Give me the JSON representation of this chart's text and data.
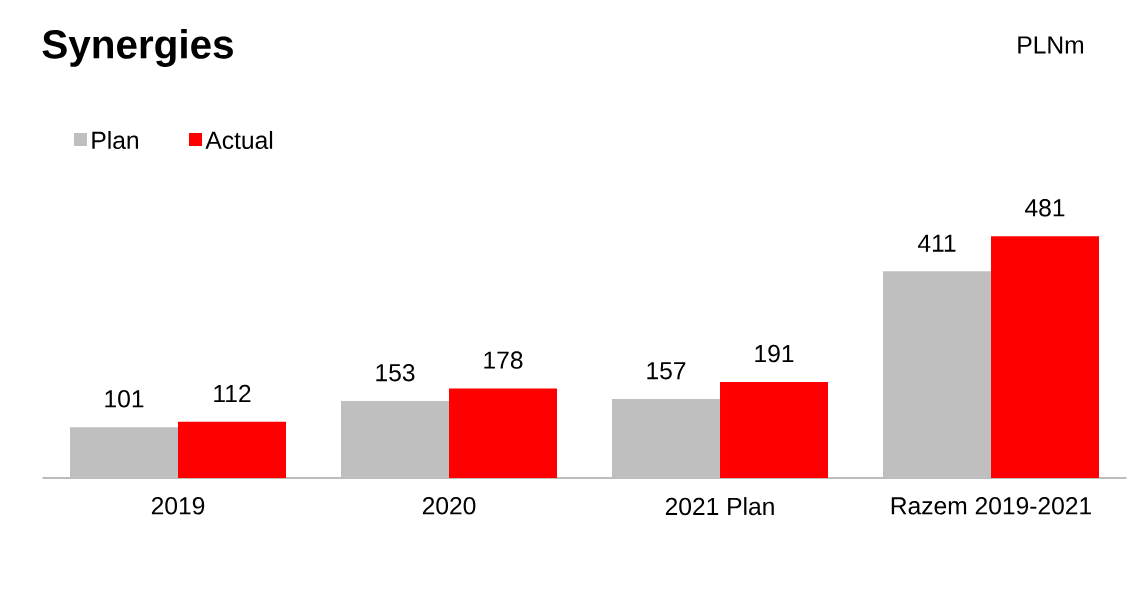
{
  "chart_data": {
    "type": "bar",
    "title": "Synergies",
    "annotations": [
      "PLNm"
    ],
    "categories": [
      "2019",
      "2020",
      "2021 Plan",
      "Razem 2019-2021"
    ],
    "series": [
      {
        "name": "Plan",
        "color": "#bfbfbf",
        "values": [
          101,
          153,
          157,
          411
        ]
      },
      {
        "name": "Actual",
        "color": "#ff0000",
        "values": [
          112,
          178,
          191,
          481
        ]
      }
    ],
    "data_labels": true,
    "legend": "top left",
    "grid": false
  }
}
